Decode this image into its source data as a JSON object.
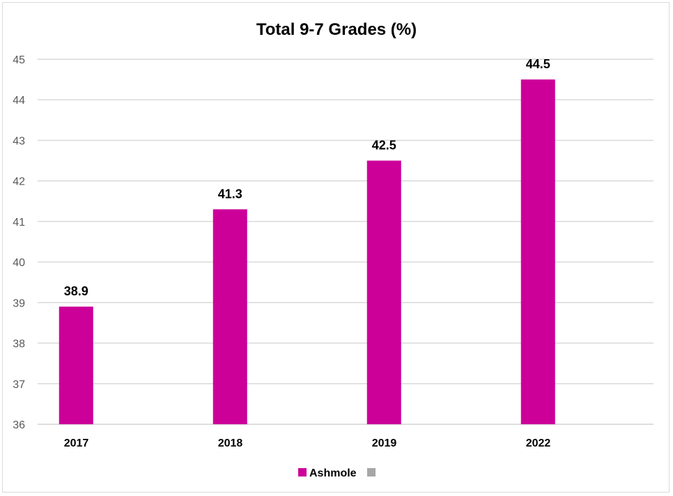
{
  "chart_data": {
    "type": "bar",
    "title": "Total 9-7 Grades (%)",
    "xlabel": "",
    "ylabel": "",
    "categories": [
      "2017",
      "2018",
      "2019",
      "2022"
    ],
    "series": [
      {
        "name": "Ashmole",
        "values": [
          38.9,
          41.3,
          42.5,
          44.5
        ],
        "color": "#cc0099"
      },
      {
        "name": "",
        "values": [
          null,
          null,
          null,
          null
        ],
        "color": "#a6a6a6"
      }
    ],
    "ylim": [
      36,
      45
    ],
    "yticks": [
      "36",
      "37",
      "38",
      "39",
      "40",
      "41",
      "42",
      "43",
      "44",
      "45"
    ],
    "data_labels": [
      "38.9",
      "41.3",
      "42.5",
      "44.5"
    ],
    "grid": true,
    "legend_position": "bottom",
    "gridline_color": "#d9d9d9"
  }
}
